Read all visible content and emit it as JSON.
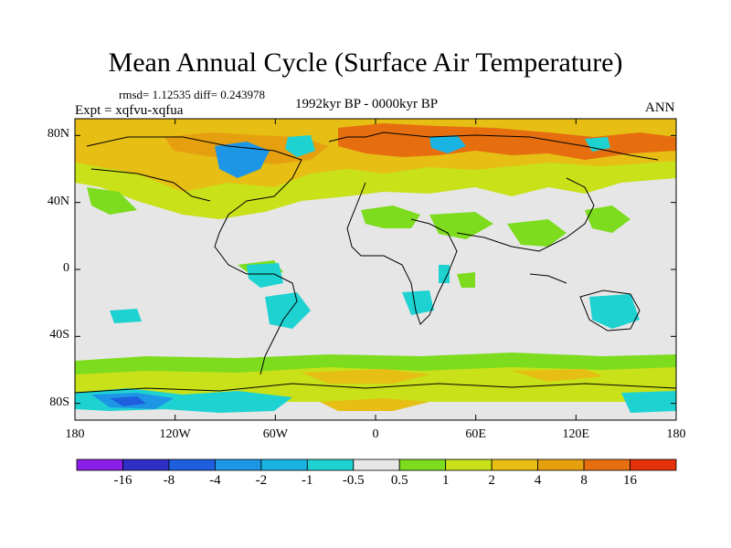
{
  "title": "Mean Annual Cycle (Surface Air Temperature)",
  "stats": "rmsd= 1.12535 diff= 0.243978",
  "experiment": "Expt = xqfvu-xqfua",
  "period": "1992kyr BP - 0000kyr BP",
  "season": "ANN",
  "y_axis": {
    "ticks": [
      "80N",
      "40N",
      "0",
      "40S",
      "80S"
    ],
    "values": [
      80,
      40,
      0,
      -40,
      -80
    ]
  },
  "x_axis": {
    "ticks": [
      "180",
      "120W",
      "60W",
      "0",
      "60E",
      "120E",
      "180"
    ],
    "values": [
      -180,
      -120,
      -60,
      0,
      60,
      120,
      180
    ]
  },
  "colorbar": {
    "labels": [
      "-16",
      "-8",
      "-4",
      "-2",
      "-1",
      "-0.5",
      "0.5",
      "1",
      "2",
      "4",
      "8",
      "16"
    ],
    "colors": [
      "#8a1ee6",
      "#2f2fc8",
      "#1e5fe0",
      "#1e96e6",
      "#19b4e1",
      "#1ed2d2",
      "#e6e6e6",
      "#7ddc1e",
      "#c8e119",
      "#e6be14",
      "#e6a00f",
      "#e66e0f",
      "#e6320a"
    ]
  }
}
